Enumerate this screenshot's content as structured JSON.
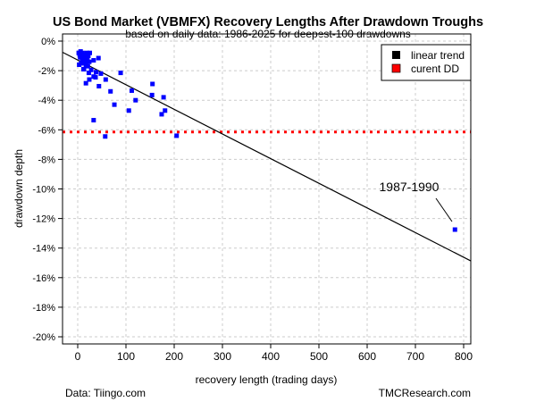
{
  "chart_data": {
    "type": "scatter",
    "title": "US Bond Market (VBMFX) Recovery Lengths After Drawdown Troughs",
    "subtitle": "based on daily data: 1986-2025 for deepest-100 drawdowns",
    "xlabel": "recovery length (trading days)",
    "ylabel": "drawdown depth",
    "xlim": [
      -30,
      810
    ],
    "ylim": [
      -20,
      0
    ],
    "x_ticks": [
      0,
      100,
      200,
      300,
      400,
      500,
      600,
      700,
      800
    ],
    "y_ticks": [
      "0%",
      "-2%",
      "-4%",
      "-6%",
      "-8%",
      "-10%",
      "-12%",
      "-14%",
      "-16%",
      "-18%",
      "-20%"
    ],
    "grid": true,
    "legend_position": "top-right",
    "legend": [
      {
        "label": "linear trend",
        "color": "#000000"
      },
      {
        "label": "curent DD",
        "color": "#ff0000"
      }
    ],
    "point_color": "#0000ff",
    "points": [
      [
        2,
        -0.8
      ],
      [
        4,
        -0.9
      ],
      [
        5,
        -1.1
      ],
      [
        6,
        -0.7
      ],
      [
        8,
        -1.0
      ],
      [
        9,
        -1.3
      ],
      [
        10,
        -0.8
      ],
      [
        11,
        -1.5
      ],
      [
        12,
        -1.0
      ],
      [
        13,
        -1.2
      ],
      [
        14,
        -0.9
      ],
      [
        15,
        -1.4
      ],
      [
        16,
        -1.1
      ],
      [
        17,
        -1.6
      ],
      [
        18,
        -1.2
      ],
      [
        19,
        -0.8
      ],
      [
        20,
        -1.3
      ],
      [
        21,
        -1.7
      ],
      [
        22,
        -1.0
      ],
      [
        24,
        -1.4
      ],
      [
        3,
        -1.6
      ],
      [
        7,
        -1.5
      ],
      [
        25,
        -0.8
      ],
      [
        12,
        -1.9
      ],
      [
        33,
        -1.3
      ],
      [
        43,
        -1.15
      ],
      [
        89,
        -2.15
      ],
      [
        48,
        -2.2
      ],
      [
        23,
        -2.15
      ],
      [
        28,
        -1.95
      ],
      [
        13,
        -1.9
      ],
      [
        38,
        -2.1
      ],
      [
        33,
        -2.4
      ],
      [
        37,
        -2.45
      ],
      [
        24,
        -2.6
      ],
      [
        17,
        -2.85
      ],
      [
        58,
        -2.6
      ],
      [
        44,
        -3.05
      ],
      [
        68,
        -3.4
      ],
      [
        112,
        -3.35
      ],
      [
        155,
        -2.9
      ],
      [
        154,
        -3.65
      ],
      [
        76,
        -4.3
      ],
      [
        120,
        -4.0
      ],
      [
        106,
        -4.7
      ],
      [
        178,
        -3.8
      ],
      [
        181,
        -4.7
      ],
      [
        174,
        -4.95
      ],
      [
        33,
        -5.35
      ],
      [
        57,
        -6.45
      ],
      [
        205,
        -6.4
      ],
      [
        782,
        -12.75
      ]
    ],
    "trend": {
      "intercept": -1.26,
      "slope": -0.0168
    },
    "current_dd": -6.15,
    "annotations": [
      {
        "text": "1987-1990",
        "x": 782,
        "y": -12.75
      }
    ]
  },
  "footer": {
    "source": "Data: Tiingo.com",
    "brand": "TMCResearch.com"
  }
}
